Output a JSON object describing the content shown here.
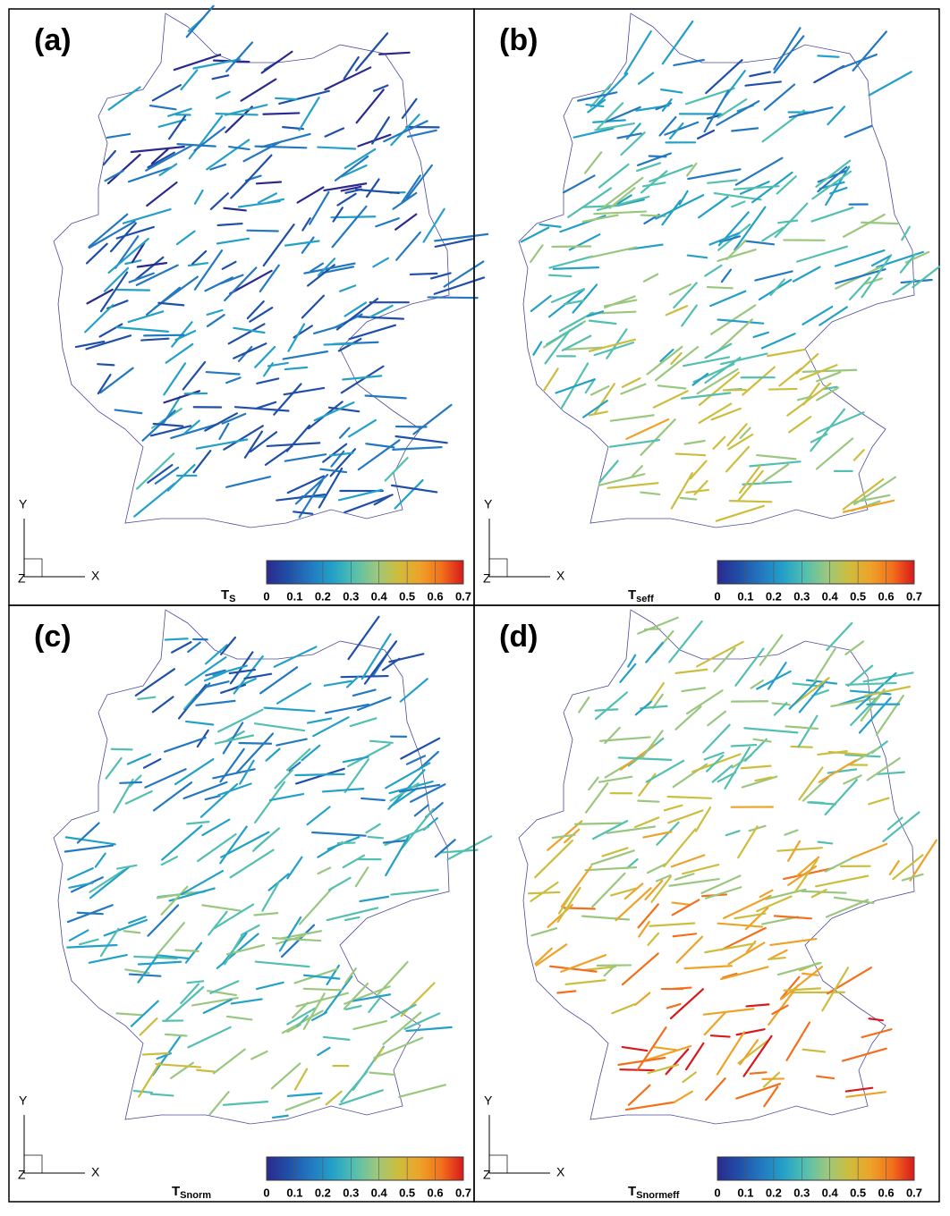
{
  "panels": [
    {
      "label": "(a)",
      "colorbar": {
        "title": "T",
        "subscript": "S"
      }
    },
    {
      "label": "(b)",
      "colorbar": {
        "title": "T",
        "subscript": "seff"
      }
    },
    {
      "label": "(c)",
      "colorbar": {
        "title": "T",
        "subscript": "Snorm"
      }
    },
    {
      "label": "(d)",
      "colorbar": {
        "title": "T",
        "subscript": "Snormeff"
      }
    }
  ],
  "colorbar_ticks": [
    0,
    0.1,
    0.2,
    0.3,
    0.4,
    0.5,
    0.6,
    0.7
  ],
  "colormap": [
    "#2b2a8c",
    "#1f4fa8",
    "#2378c0",
    "#23a0c8",
    "#52bfb0",
    "#9ac77f",
    "#cdbd3e",
    "#eda329",
    "#f36f1b",
    "#d7191c"
  ],
  "axes": {
    "y": "Y",
    "x": "X",
    "z": "Z"
  }
}
